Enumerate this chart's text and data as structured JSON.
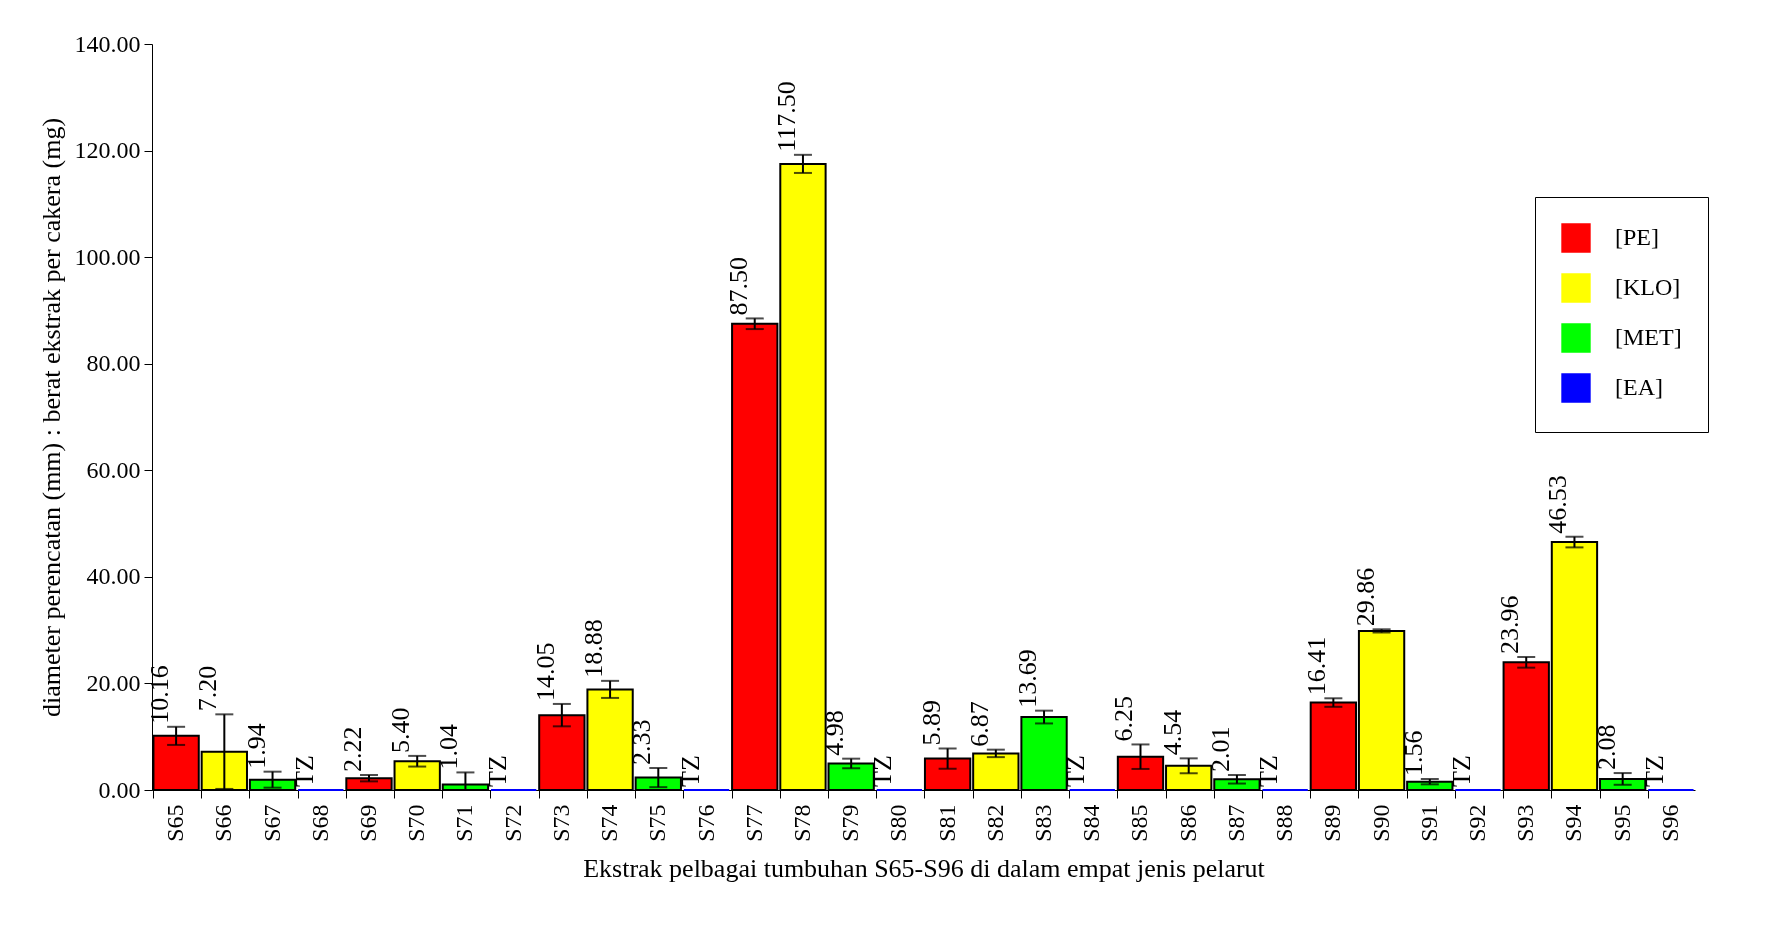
{
  "chart_data": {
    "type": "bar",
    "xlabel": "Ekstrak pelbagai tumbuhan S65-S96 di dalam empat jenis pelarut",
    "ylabel": "diameter perencatan (mm) : berat ekstrak per cakera (mg)",
    "categories": [
      "S65",
      "S66",
      "S67",
      "S68",
      "S69",
      "S70",
      "S71",
      "S72",
      "S73",
      "S74",
      "S75",
      "S76",
      "S77",
      "S78",
      "S79",
      "S80",
      "S81",
      "S82",
      "S83",
      "S84",
      "S85",
      "S86",
      "S87",
      "S88",
      "S89",
      "S90",
      "S91",
      "S92",
      "S93",
      "S94",
      "S95",
      "S96"
    ],
    "series": [
      {
        "name": "[PE]",
        "color": "#ff0000",
        "values": [
          10.16,
          null,
          null,
          null,
          2.22,
          null,
          null,
          null,
          14.05,
          null,
          null,
          null,
          87.5,
          null,
          null,
          null,
          5.89,
          null,
          null,
          null,
          6.25,
          null,
          null,
          null,
          16.41,
          null,
          null,
          null,
          23.96,
          null,
          null,
          null
        ],
        "errors": [
          1.7,
          null,
          null,
          null,
          0.6,
          null,
          null,
          null,
          2.1,
          null,
          null,
          null,
          1.0,
          null,
          null,
          null,
          1.9,
          null,
          null,
          null,
          2.3,
          null,
          null,
          null,
          0.8,
          null,
          null,
          null,
          1.0,
          null,
          null,
          null
        ],
        "value_labels": [
          "10.16",
          null,
          null,
          null,
          "2.22",
          null,
          null,
          null,
          "14.05",
          null,
          null,
          null,
          "87.50",
          null,
          null,
          null,
          "5.89",
          null,
          null,
          null,
          "6.25",
          null,
          null,
          null,
          "16.41",
          null,
          null,
          null,
          "23.96",
          null,
          null,
          null
        ]
      },
      {
        "name": "[KLO]",
        "color": "#ffff00",
        "values": [
          null,
          7.2,
          null,
          null,
          null,
          5.4,
          null,
          null,
          null,
          18.88,
          null,
          null,
          null,
          117.5,
          null,
          null,
          null,
          6.87,
          null,
          null,
          null,
          4.54,
          null,
          null,
          null,
          29.86,
          null,
          null,
          null,
          46.53,
          null,
          null
        ],
        "errors": [
          null,
          7.0,
          null,
          null,
          null,
          1.0,
          null,
          null,
          null,
          1.6,
          null,
          null,
          null,
          1.7,
          null,
          null,
          null,
          0.7,
          null,
          null,
          null,
          1.4,
          null,
          null,
          null,
          0.3,
          null,
          null,
          null,
          1.0,
          null,
          null
        ],
        "value_labels": [
          null,
          "7.20",
          null,
          null,
          null,
          "5.40",
          null,
          null,
          null,
          "18.88",
          null,
          null,
          null,
          "117.50",
          null,
          null,
          null,
          "6.87",
          null,
          null,
          null,
          "4.54",
          null,
          null,
          null,
          "29.86",
          null,
          null,
          null,
          "46.53",
          null,
          null
        ]
      },
      {
        "name": "[MET]",
        "color": "#00ff00",
        "values": [
          null,
          null,
          1.94,
          null,
          null,
          null,
          1.04,
          null,
          null,
          null,
          2.33,
          null,
          null,
          null,
          4.98,
          null,
          null,
          null,
          13.69,
          null,
          null,
          null,
          2.01,
          null,
          null,
          null,
          1.56,
          null,
          null,
          null,
          2.08,
          null
        ],
        "errors": [
          null,
          null,
          1.5,
          null,
          null,
          null,
          [
            0,
            3.3
          ],
          null,
          null,
          null,
          1.8,
          null,
          null,
          null,
          0.9,
          null,
          null,
          null,
          1.2,
          null,
          null,
          null,
          0.8,
          null,
          null,
          null,
          0.5,
          null,
          null,
          null,
          1.1,
          null
        ],
        "value_labels": [
          null,
          null,
          "1.94",
          null,
          null,
          null,
          "1.04",
          null,
          null,
          null,
          "2.33",
          null,
          null,
          null,
          "4.98",
          null,
          null,
          null,
          "13.69",
          null,
          null,
          null,
          "2.01",
          null,
          null,
          null,
          "1.56",
          null,
          null,
          null,
          "2.08",
          null
        ]
      },
      {
        "name": "[EA]",
        "color": "#0000ff",
        "values": [
          null,
          null,
          null,
          0,
          null,
          null,
          null,
          0,
          null,
          null,
          null,
          0,
          null,
          null,
          null,
          0,
          null,
          null,
          null,
          0,
          null,
          null,
          null,
          0,
          null,
          null,
          null,
          0,
          null,
          null,
          null,
          0
        ],
        "value_labels": [
          null,
          null,
          null,
          "TZ",
          null,
          null,
          null,
          "TZ",
          null,
          null,
          null,
          "TZ",
          null,
          null,
          null,
          "TZ",
          null,
          null,
          null,
          "TZ",
          null,
          null,
          null,
          "TZ",
          null,
          null,
          null,
          "TZ",
          null,
          null,
          null,
          "TZ"
        ]
      }
    ],
    "ylim": [
      0,
      140
    ],
    "yticks": [
      {
        "value": 0,
        "label": "0.00"
      },
      {
        "value": 20,
        "label": "20.00"
      },
      {
        "value": 40,
        "label": "40.00"
      },
      {
        "value": 60,
        "label": "60.00"
      },
      {
        "value": 80,
        "label": "80.00"
      },
      {
        "value": 100,
        "label": "100.00"
      },
      {
        "value": 120,
        "label": "120.00"
      },
      {
        "value": 140,
        "label": "140.00"
      }
    ],
    "legend": "top right",
    "grid": false
  }
}
